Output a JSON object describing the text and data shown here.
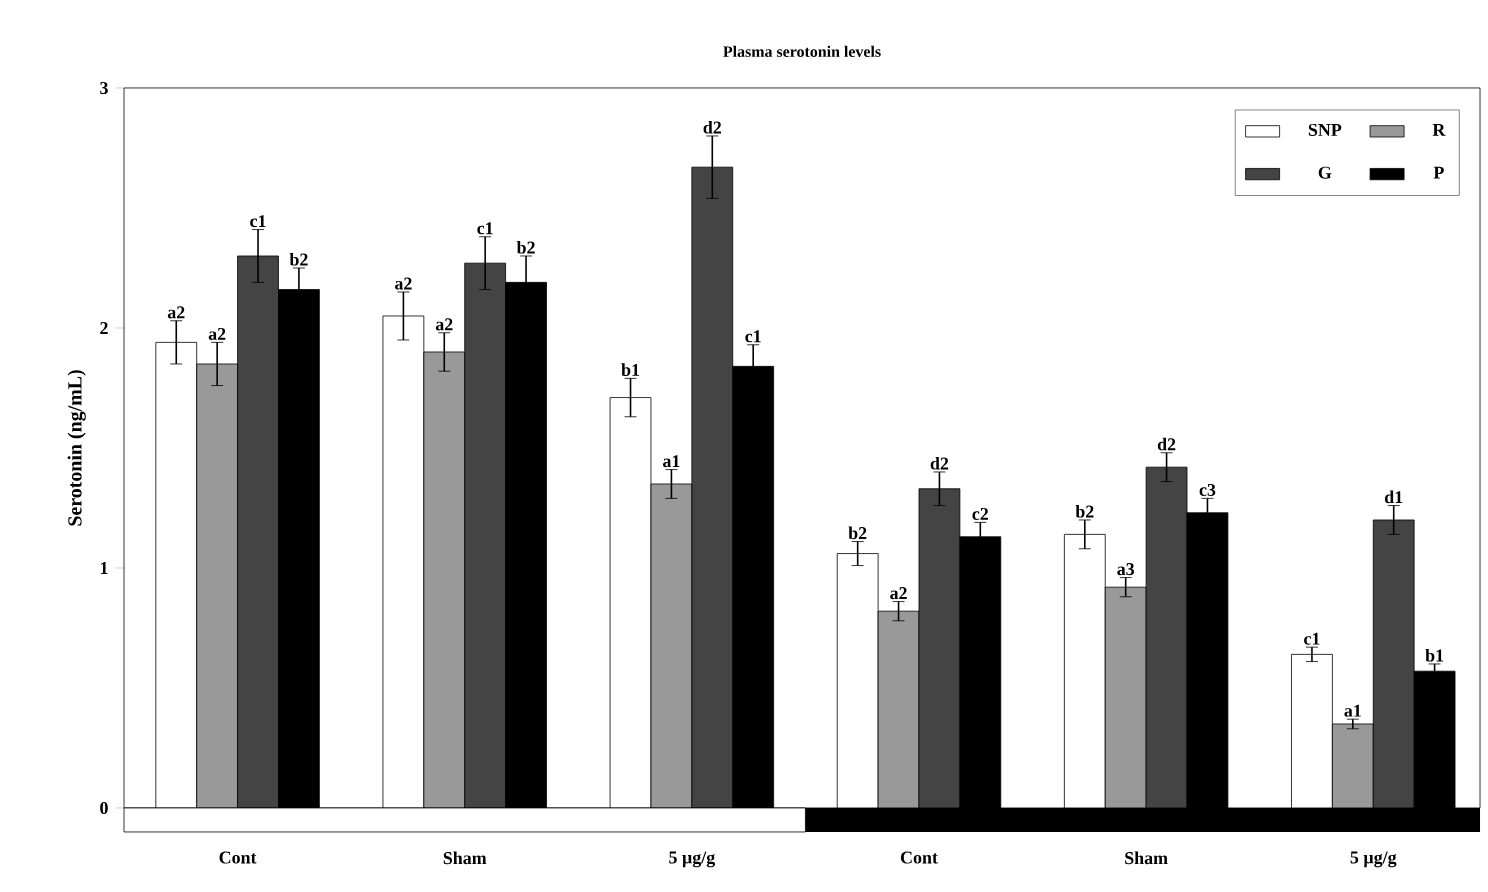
{
  "chart_data": {
    "type": "bar",
    "title": "Plasma serotonin levels",
    "ylabel": "Serotonin (ng/mL)",
    "categories": [
      "Cont",
      "Sham",
      "5 µg/g",
      "Cont",
      "Sham",
      "5 µg/g"
    ],
    "series": [
      {
        "name": "SNP",
        "color": "#ffffff",
        "values": [
          1.94,
          2.05,
          1.71,
          1.06,
          1.14,
          0.64
        ],
        "errors": [
          0.09,
          0.1,
          0.08,
          0.05,
          0.06,
          0.03
        ],
        "value_labels": [
          "a2",
          "a2",
          "b1",
          "b2",
          "b2",
          "c1"
        ]
      },
      {
        "name": "R",
        "color": "#999999",
        "values": [
          1.85,
          1.9,
          1.35,
          0.82,
          0.92,
          0.35
        ],
        "errors": [
          0.09,
          0.08,
          0.06,
          0.04,
          0.04,
          0.02
        ],
        "value_labels": [
          "a2",
          "a2",
          "a1",
          "a2",
          "a3",
          "a1"
        ]
      },
      {
        "name": "G",
        "color": "#444444",
        "values": [
          2.3,
          2.27,
          2.67,
          1.33,
          1.42,
          1.2
        ],
        "errors": [
          0.11,
          0.11,
          0.13,
          0.07,
          0.06,
          0.06
        ],
        "value_labels": [
          "c1",
          "c1",
          "d2",
          "d2",
          "d2",
          "d1"
        ]
      },
      {
        "name": "P",
        "color": "#000000",
        "values": [
          2.16,
          2.19,
          1.84,
          1.13,
          1.23,
          0.57
        ],
        "errors": [
          0.09,
          0.11,
          0.09,
          0.06,
          0.06,
          0.03
        ],
        "value_labels": [
          "b2",
          "b2",
          "c1",
          "c2",
          "c3",
          "b1"
        ]
      }
    ],
    "ylim": [
      0,
      3
    ],
    "yticks": [
      0,
      1,
      2,
      3
    ],
    "legend": "top right",
    "grid": false
  }
}
